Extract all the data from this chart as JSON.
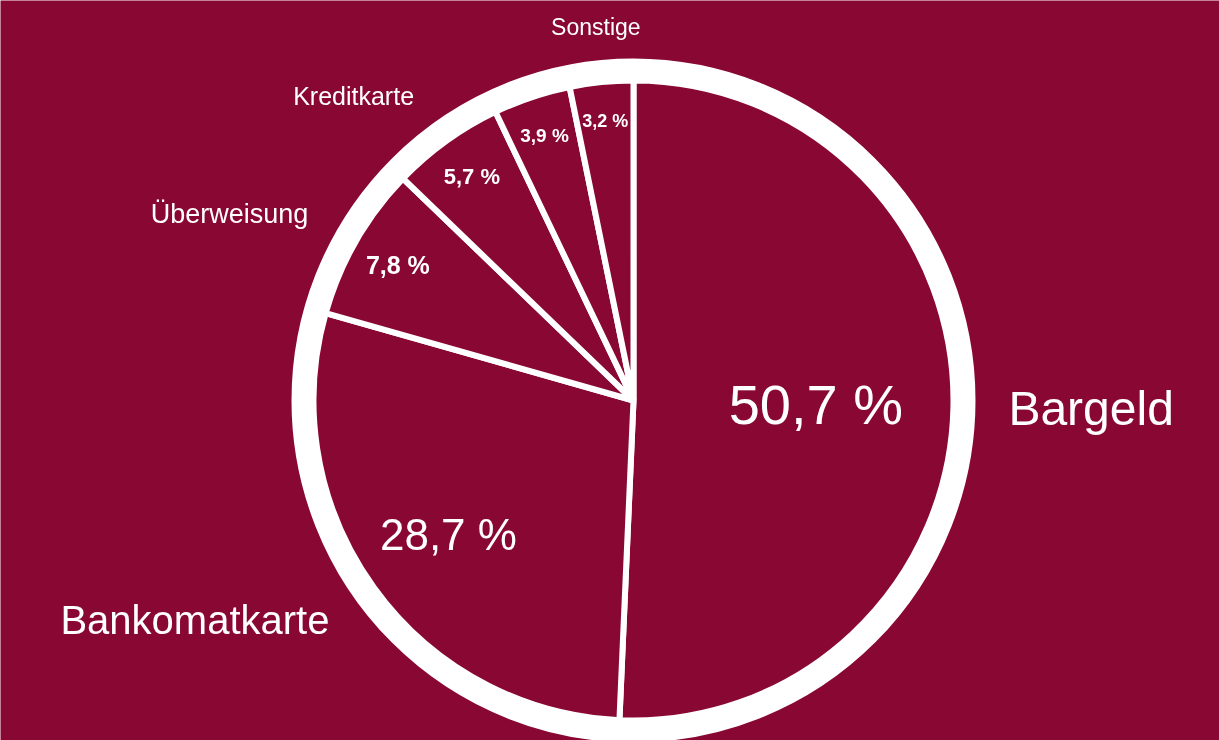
{
  "chart_data": {
    "type": "pie",
    "categories": [
      "Bargeld",
      "Bankomatkarte",
      "Überweisung",
      "Kreditkarte",
      null,
      "Sonstige"
    ],
    "values": [
      50.7,
      28.7,
      7.8,
      5.7,
      3.9,
      3.2
    ],
    "colors": [
      "#890833",
      "#890833",
      "#890833",
      "#890833",
      "#890833",
      "#890833"
    ],
    "value_labels": [
      "50,7 %",
      "28,7 %",
      "7,8 %",
      "5,7 %",
      "3,9 %",
      "3,2 %"
    ]
  }
}
